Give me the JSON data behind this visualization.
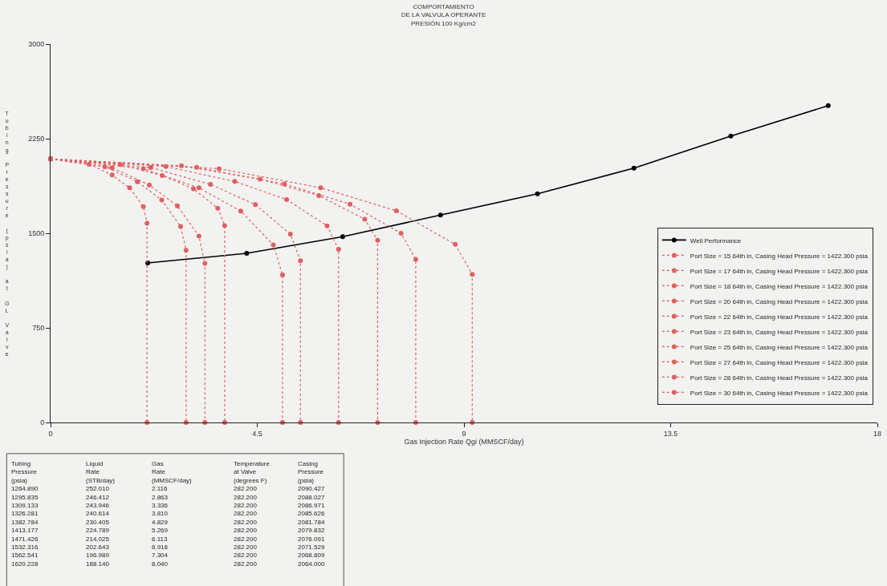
{
  "chart_data": {
    "type": "line",
    "title": "COMPORTAMIENTO\nDE LA VALVULA OPERANTE\nPRESIÓN 100 Kg/cm2",
    "xlabel": "Gas Injection Rate Qgi (MMSCF/day)",
    "ylabel": "Tubing Pressure (psia) at GL Valve",
    "xlim": [
      0,
      18
    ],
    "xticks": [
      0,
      4.5,
      9,
      13.5,
      18
    ],
    "ylim": [
      0,
      3000
    ],
    "yticks": [
      0,
      750,
      1500,
      2250,
      3000
    ],
    "grid": false,
    "legend": "right",
    "marker": "circle",
    "series": [
      {
        "name": "Well Performance",
        "color": "#000000",
        "line_style": "solid",
        "x": [
          2.116,
          4.27,
          6.36,
          8.49,
          10.6,
          12.7,
          14.81,
          16.93
        ],
        "values": [
          1265,
          1341,
          1473,
          1645,
          1813,
          2016,
          2270,
          2512
        ]
      },
      {
        "name": "Port Size = 15 64th in, Casing Head Pressure = 1422.300 psia",
        "color": "#e06060",
        "line_style": "dotted",
        "x": [
          0,
          0.84,
          1.34,
          1.72,
          2.02,
          2.1,
          2.1
        ],
        "values": [
          2090,
          2047,
          1962,
          1860,
          1712,
          1579,
          0
        ]
      },
      {
        "name": "Port Size = 17 64th in, Casing Head Pressure = 1422.300 psia",
        "color": "#e06060",
        "line_style": "dotted",
        "x": [
          0,
          1.18,
          1.89,
          2.42,
          2.83,
          2.95,
          2.95
        ],
        "values": [
          2090,
          2028,
          1909,
          1764,
          1554,
          1365,
          0
        ]
      },
      {
        "name": "Port Size = 18 64th in, Casing Head Pressure = 1422.300 psia",
        "color": "#e06060",
        "line_style": "dotted",
        "x": [
          0,
          1.34,
          2.15,
          2.76,
          3.23,
          3.36,
          3.36
        ],
        "values": [
          2090,
          2020,
          1883,
          1717,
          1477,
          1262,
          0
        ]
      },
      {
        "name": "Port Size = 20 64th in, Casing Head Pressure = 1422.300 psia",
        "color": "#e06060",
        "line_style": "dotted",
        "x": [
          0,
          1.52,
          2.43,
          3.11,
          3.64,
          3.79,
          3.79
        ],
        "values": [
          2090,
          2045,
          1958,
          1852,
          1699,
          1561,
          0
        ]
      },
      {
        "name": "Port Size = 22 64th in, Casing Head Pressure = 1422.300 psia",
        "color": "#e06060",
        "line_style": "dotted",
        "x": [
          0,
          2.02,
          3.23,
          4.14,
          4.85,
          5.05,
          5.05
        ],
        "values": [
          2090,
          2012,
          1860,
          1676,
          1408,
          1169,
          0
        ]
      },
      {
        "name": "Port Size = 23 64th in, Casing Head Pressure = 1422.300 psia",
        "color": "#e06060",
        "line_style": "dotted",
        "x": [
          0,
          2.18,
          3.48,
          4.46,
          5.22,
          5.44,
          5.44
        ],
        "values": [
          2090,
          2021,
          1888,
          1727,
          1493,
          1283,
          0
        ]
      },
      {
        "name": "Port Size = 25 64th in, Casing Head Pressure = 1422.300 psia",
        "color": "#e06060",
        "line_style": "dotted",
        "x": [
          0,
          2.51,
          4.01,
          5.14,
          6.02,
          6.27,
          6.27
        ],
        "values": [
          2090,
          2029,
          1911,
          1767,
          1559,
          1373,
          0
        ]
      },
      {
        "name": "Port Size = 27 64th in, Casing Head Pressure = 1422.300 psia",
        "color": "#e06060",
        "line_style": "dotted",
        "x": [
          0,
          2.85,
          4.56,
          5.84,
          6.84,
          7.12,
          7.12
        ],
        "values": [
          2090,
          2035,
          1929,
          1799,
          1612,
          1444,
          0
        ]
      },
      {
        "name": "Port Size = 28 64th in, Casing Head Pressure = 1422.300 psia",
        "color": "#e06060",
        "line_style": "dotted",
        "x": [
          0,
          3.18,
          5.09,
          6.52,
          7.63,
          7.95,
          7.95
        ],
        "values": [
          2090,
          2022,
          1891,
          1731,
          1500,
          1293,
          0
        ]
      },
      {
        "name": "Port Size = 30 64th in, Casing Head Pressure = 1422.300 psia",
        "color": "#e06060",
        "line_style": "dotted",
        "x": [
          0,
          3.67,
          5.88,
          7.53,
          8.81,
          9.18,
          9.18
        ],
        "values": [
          2090,
          2012,
          1861,
          1678,
          1412,
          1174,
          0
        ]
      }
    ],
    "annotations": [
      "Tubing\nPressure\n(psia)\n1264.890\n1295.835\n1309.133\n1326.281\n1382.784\n1413.177\n1471.426\n1532.316\n1562.541\n1620.228",
      "Liquid\nRate\n(STB/day)\n252.010\n246.412\n243.946\n240.614\n230.405\n224.789\n214.025\n202.643\n196.989\n188.140",
      "Gas\nRate\n(MMSCF/day)\n2.116\n2.863\n3.336\n3.810\n4.829\n5.269\n6.113\n6.918\n7.304\n8.040",
      "Temperature\nat Valve\n(degrees F)\n282.200\n282.200\n282.200\n282.200\n282.200\n282.200\n282.200\n282.200\n282.200\n282.200",
      "Casing\nPressure\n(psia)\n2090.427\n2088.027\n2086.971\n2085.626\n2081.784\n2079.832\n2076.091\n2071.529\n2068.809\n2064.000"
    ]
  }
}
